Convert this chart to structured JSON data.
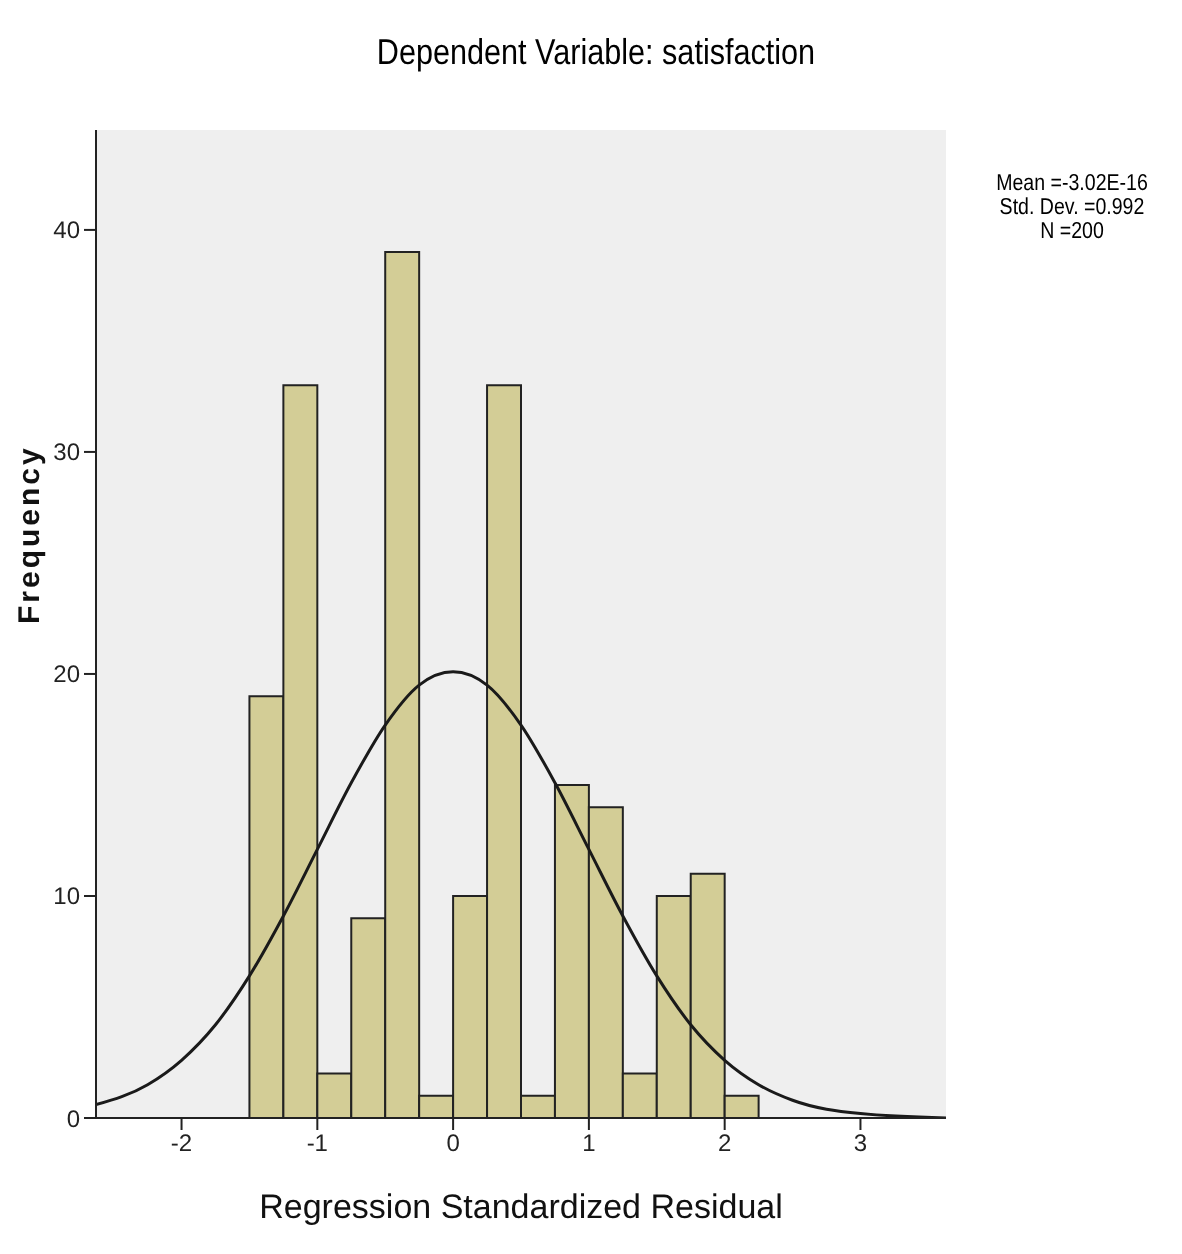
{
  "chart_data": {
    "type": "histogram",
    "title": "Dependent Variable: satisfaction",
    "xlabel": "Regression Standardized Residual",
    "ylabel": "Frequency",
    "annotations": [
      "Mean =-3.02E-16",
      "Std. Dev. =0.992",
      "N =200"
    ],
    "series": [
      {
        "color": "#d3cd96",
        "bins": [
          -1.5,
          -1.25,
          -1,
          -0.75,
          -0.5,
          -0.25,
          0,
          0.25,
          0.5,
          0.75,
          1,
          1.25,
          1.5,
          1.75,
          2,
          2.25
        ],
        "values": [
          19,
          33,
          2,
          9,
          39,
          1,
          10,
          33,
          1,
          15,
          14,
          2,
          10,
          11,
          1
        ]
      },
      {
        "type": "line",
        "color": "#1a1a1a",
        "x": [
          -2.63,
          -2.25,
          -2,
          -1.75,
          -1.5,
          -1.25,
          -1,
          -0.75,
          -0.5,
          -0.25,
          0,
          0.25,
          0.5,
          0.75,
          1,
          1.25,
          1.5,
          1.75,
          2,
          2.25,
          2.5,
          3,
          3.63
        ],
        "values": [
          0.6,
          1.5,
          2.6,
          4.2,
          6.4,
          9.1,
          12.1,
          15.1,
          17.7,
          19.5,
          20.1,
          19.5,
          17.7,
          15.1,
          12.1,
          9.1,
          6.4,
          4.2,
          2.6,
          1.5,
          0.8,
          0.2,
          0
        ]
      }
    ],
    "xlim": [
      -2.63,
      3.63
    ],
    "xticks": [
      -2,
      -1,
      0,
      1,
      2,
      3
    ],
    "ylim": [
      0,
      44.5
    ],
    "yticks": [
      0,
      10,
      20,
      30,
      40
    ],
    "grid": false
  }
}
